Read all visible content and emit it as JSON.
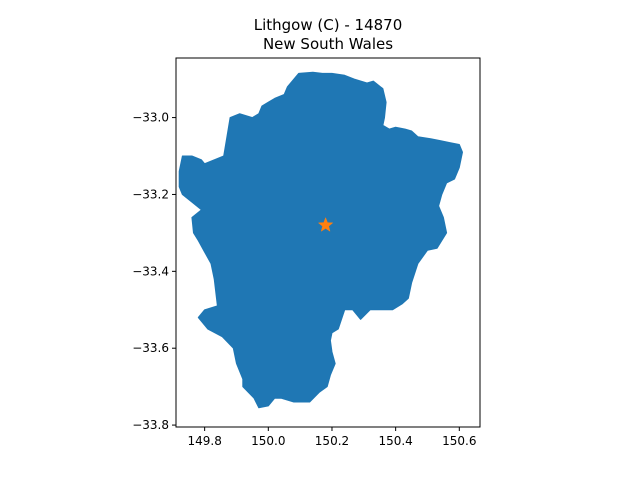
{
  "title": {
    "line1": "Lithgow (C) - 14870",
    "line2": "New South Wales"
  },
  "chart_data": {
    "type": "map",
    "title": "Lithgow (C) - 14870\nNew South Wales",
    "xlim": [
      149.71,
      150.665
    ],
    "ylim": [
      -33.805,
      -32.845
    ],
    "xticks": [
      149.8,
      150.0,
      150.2,
      150.4,
      150.6
    ],
    "xtick_labels": [
      "149.8",
      "150.0",
      "150.2",
      "150.4",
      "150.6"
    ],
    "yticks": [
      -33.0,
      -33.2,
      -33.4,
      -33.6,
      -33.8
    ],
    "ytick_labels": [
      "−33.0",
      "−33.2",
      "−33.4",
      "−33.6",
      "−33.8"
    ],
    "region": {
      "name": "Lithgow (C)",
      "fill": "#1f77b4",
      "outline": [
        [
          150.06,
          -32.92
        ],
        [
          150.095,
          -32.885
        ],
        [
          150.14,
          -32.882
        ],
        [
          150.17,
          -32.885
        ],
        [
          150.2,
          -32.885
        ],
        [
          150.24,
          -32.89
        ],
        [
          150.27,
          -32.9
        ],
        [
          150.31,
          -32.91
        ],
        [
          150.33,
          -32.905
        ],
        [
          150.36,
          -32.925
        ],
        [
          150.37,
          -32.96
        ],
        [
          150.365,
          -33.0
        ],
        [
          150.36,
          -33.02
        ],
        [
          150.38,
          -33.03
        ],
        [
          150.4,
          -33.025
        ],
        [
          150.43,
          -33.03
        ],
        [
          150.45,
          -33.035
        ],
        [
          150.47,
          -33.05
        ],
        [
          150.51,
          -33.055
        ],
        [
          150.54,
          -33.06
        ],
        [
          150.57,
          -33.065
        ],
        [
          150.6,
          -33.07
        ],
        [
          150.61,
          -33.09
        ],
        [
          150.6,
          -33.13
        ],
        [
          150.585,
          -33.16
        ],
        [
          150.56,
          -33.17
        ],
        [
          150.545,
          -33.2
        ],
        [
          150.535,
          -33.23
        ],
        [
          150.55,
          -33.26
        ],
        [
          150.56,
          -33.3
        ],
        [
          150.53,
          -33.34
        ],
        [
          150.5,
          -33.345
        ],
        [
          150.47,
          -33.38
        ],
        [
          150.45,
          -33.43
        ],
        [
          150.44,
          -33.47
        ],
        [
          150.42,
          -33.485
        ],
        [
          150.39,
          -33.5
        ],
        [
          150.36,
          -33.5
        ],
        [
          150.32,
          -33.5
        ],
        [
          150.29,
          -33.525
        ],
        [
          150.265,
          -33.5
        ],
        [
          150.24,
          -33.5
        ],
        [
          150.22,
          -33.55
        ],
        [
          150.2,
          -33.56
        ],
        [
          150.195,
          -33.58
        ],
        [
          150.2,
          -33.61
        ],
        [
          150.21,
          -33.64
        ],
        [
          150.195,
          -33.67
        ],
        [
          150.185,
          -33.7
        ],
        [
          150.16,
          -33.715
        ],
        [
          150.13,
          -33.74
        ],
        [
          150.08,
          -33.74
        ],
        [
          150.04,
          -33.73
        ],
        [
          150.02,
          -33.73
        ],
        [
          150.0,
          -33.75
        ],
        [
          149.97,
          -33.755
        ],
        [
          149.955,
          -33.73
        ],
        [
          149.92,
          -33.7
        ],
        [
          149.92,
          -33.68
        ],
        [
          149.9,
          -33.64
        ],
        [
          149.89,
          -33.6
        ],
        [
          149.855,
          -33.57
        ],
        [
          149.81,
          -33.55
        ],
        [
          149.78,
          -33.52
        ],
        [
          149.8,
          -33.5
        ],
        [
          149.84,
          -33.49
        ],
        [
          149.83,
          -33.42
        ],
        [
          149.82,
          -33.38
        ],
        [
          149.8,
          -33.35
        ],
        [
          149.78,
          -33.32
        ],
        [
          149.765,
          -33.3
        ],
        [
          149.76,
          -33.26
        ],
        [
          149.79,
          -33.24
        ],
        [
          149.76,
          -33.22
        ],
        [
          149.73,
          -33.2
        ],
        [
          149.72,
          -33.18
        ],
        [
          149.72,
          -33.14
        ],
        [
          149.73,
          -33.1
        ],
        [
          149.76,
          -33.1
        ],
        [
          149.79,
          -33.11
        ],
        [
          149.8,
          -33.12
        ],
        [
          149.83,
          -33.11
        ],
        [
          149.86,
          -33.1
        ],
        [
          149.87,
          -33.05
        ],
        [
          149.88,
          -33.0
        ],
        [
          149.91,
          -32.99
        ],
        [
          149.95,
          -33.0
        ],
        [
          149.97,
          -32.99
        ],
        [
          149.98,
          -32.97
        ],
        [
          150.0,
          -32.96
        ],
        [
          150.02,
          -32.95
        ],
        [
          150.05,
          -32.94
        ]
      ]
    },
    "marker": {
      "type": "star",
      "x": 150.18,
      "y": -33.28,
      "color": "#ff7f0e"
    },
    "grid": false
  }
}
